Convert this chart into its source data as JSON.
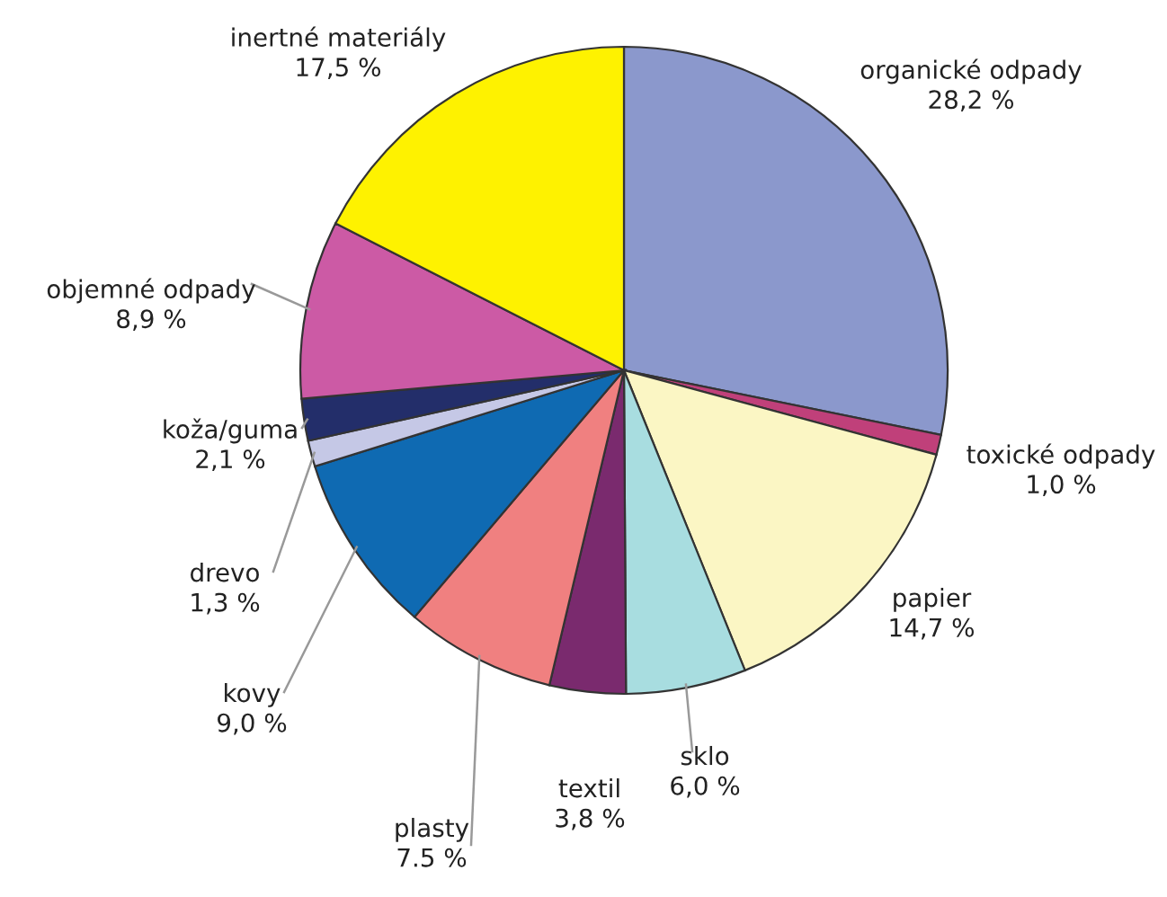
{
  "chart_data": {
    "type": "pie",
    "categories": [
      "organické odpady",
      "toxické odpady",
      "papier",
      "sklo",
      "textil",
      "plasty",
      "kovy",
      "drevo",
      "koža/guma",
      "objemné odpady",
      "inertné materiály"
    ],
    "values": [
      28.2,
      1.0,
      14.7,
      6.0,
      3.8,
      7.5,
      9.0,
      1.3,
      2.1,
      8.9,
      17.5
    ],
    "colors": [
      "#8b98cc",
      "#c0407a",
      "#fbf6c4",
      "#a8dde0",
      "#7a2a6e",
      "#f08080",
      "#0f6ab2",
      "#c5c8e6",
      "#232e6a",
      "#cc5aa5",
      "#fef200"
    ],
    "value_labels": [
      "28,2 %",
      "1,0 %",
      "14,7 %",
      "6,0 %",
      "3,8 %",
      "7.5 %",
      "9,0 %",
      "1,3 %",
      "2,1 %",
      "8,9 %",
      "17,5 %"
    ]
  }
}
